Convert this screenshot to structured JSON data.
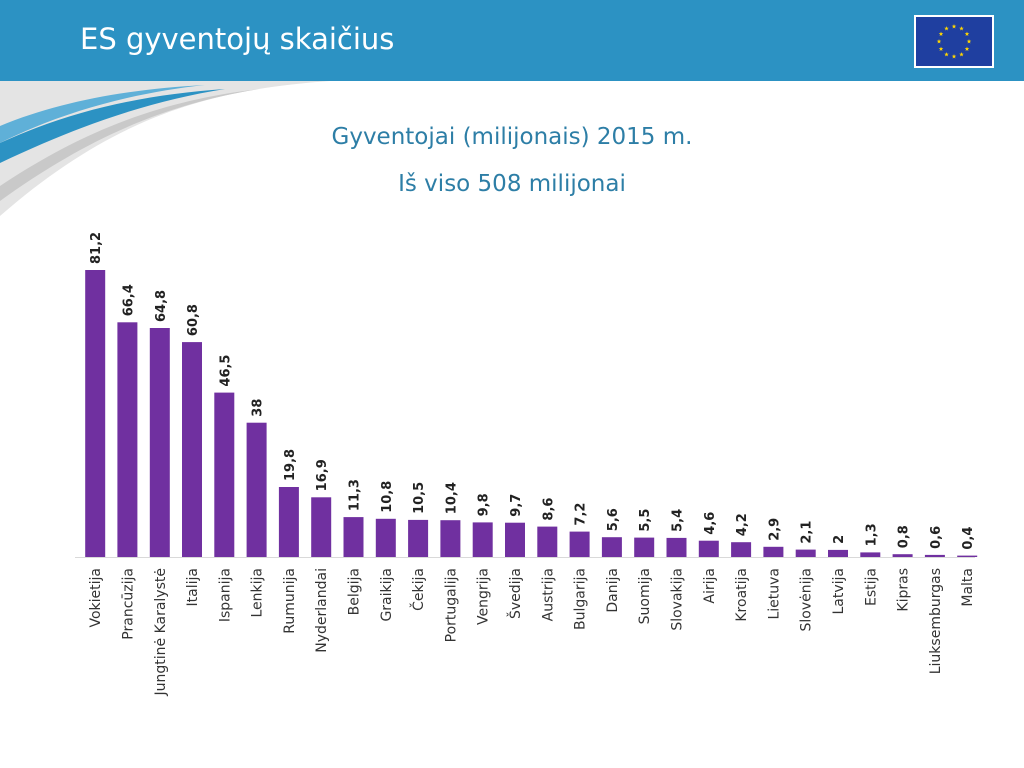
{
  "slide": {
    "title": "ES gyventojų skaičius",
    "header_color": "#2c92c3",
    "flag_icon": "eu-flag-icon"
  },
  "chart_data": {
    "type": "bar",
    "title": "Gyventojai (milijonais) 2015 m.",
    "subtitle": "Iš viso 508 milijonai",
    "bar_color": "#7030a0",
    "categories": [
      "Vokietija",
      "Prancūzija",
      "Jungtinė Karalystė",
      "Italija",
      "Ispanija",
      "Lenkija",
      "Rumunija",
      "Nyderlandai",
      "Belgija",
      "Graikija",
      "Čekija",
      "Portugalija",
      "Vengrija",
      "Švedija",
      "Austrija",
      "Bulgarija",
      "Danija",
      "Suomija",
      "Slovakija",
      "Airija",
      "Kroatija",
      "Lietuva",
      "Slovėnija",
      "Latvija",
      "Estija",
      "Kipras",
      "Liuksemburgas",
      "Malta"
    ],
    "values": [
      81.2,
      66.4,
      64.8,
      60.8,
      46.5,
      38,
      19.8,
      16.9,
      11.3,
      10.8,
      10.5,
      10.4,
      9.8,
      9.7,
      8.6,
      7.2,
      5.6,
      5.5,
      5.4,
      4.6,
      4.2,
      2.9,
      2.1,
      2,
      1.3,
      0.8,
      0.6,
      0.4
    ],
    "value_labels": [
      "81,2",
      "66,4",
      "64,8",
      "60,8",
      "46,5",
      "38",
      "19,8",
      "16,9",
      "11,3",
      "10,8",
      "10,5",
      "10,4",
      "9,8",
      "9,7",
      "8,6",
      "7,2",
      "5,6",
      "5,5",
      "5,4",
      "4,6",
      "4,2",
      "2,9",
      "2,1",
      "2",
      "1,3",
      "0,8",
      "0,6",
      "0,4"
    ],
    "ylim": [
      0,
      81.2
    ],
    "grid": false,
    "legend": "none"
  }
}
